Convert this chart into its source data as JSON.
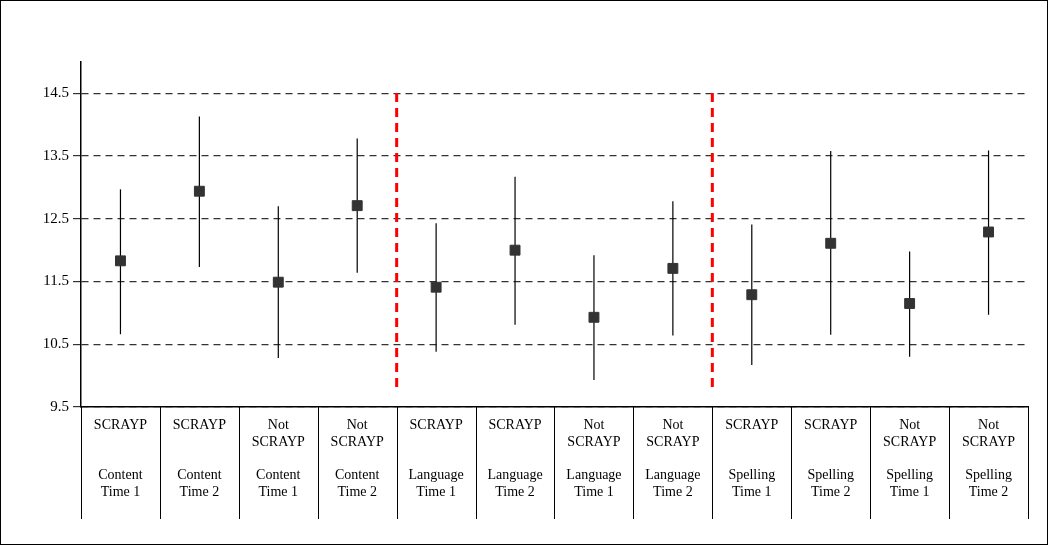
{
  "chart_data": {
    "type": "scatter",
    "categories": [
      "SCRAYP\n\nContent\nTime 1",
      "SCRAYP\n\nContent\nTime 2",
      "Not\nSCRAYP\n\nContent\nTime 1",
      "Not\nSCRAYP\n\nContent\nTime 2",
      "SCRAYP\n\nLanguage\nTime 1",
      "SCRAYP\n\nLanguage\nTime 2",
      "Not\nSCRAYP\n\nLanguage\nTime 1",
      "Not\nSCRAYP\n\nLanguage\nTime 2",
      "SCRAYP\n\nSpelling\nTime 1",
      "SCRAYP\n\nSpelling\nTime 2",
      "Not\nSCRAYP\n\nSpelling\nTime 1",
      "Not\nSCRAYP\n\nSpelling\nTime 2"
    ],
    "series": [
      {
        "color": "#333333",
        "values": [
          11.83,
          12.94,
          11.49,
          12.71,
          11.41,
          12.0,
          10.93,
          11.71,
          11.29,
          12.11,
          11.15,
          12.29
        ],
        "errors": [
          [
            10.66,
            12.97
          ],
          [
            11.73,
            14.13
          ],
          [
            10.28,
            12.7
          ],
          [
            11.64,
            13.78
          ],
          [
            10.38,
            12.43
          ],
          [
            10.81,
            13.17
          ],
          [
            9.93,
            11.92
          ],
          [
            10.64,
            12.78
          ],
          [
            10.17,
            12.41
          ],
          [
            10.65,
            13.58
          ],
          [
            10.3,
            11.98
          ],
          [
            10.97,
            13.59
          ]
        ]
      }
    ],
    "ylim": [
      9.5,
      15.0
    ],
    "yticks": [
      9.5,
      10.5,
      11.5,
      12.5,
      13.5,
      14.5
    ],
    "grid": "y",
    "legend": false,
    "marker": "square"
  }
}
